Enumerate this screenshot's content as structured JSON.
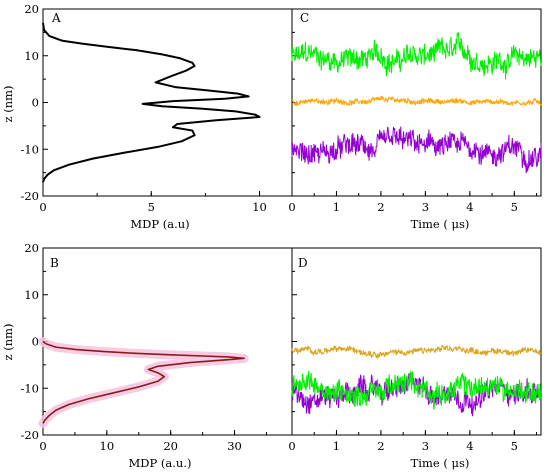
{
  "figure": {
    "panels": [
      "A",
      "B",
      "C",
      "D"
    ]
  },
  "chart_data": [
    {
      "id": "A",
      "type": "line",
      "xlabel": "MDP (a.u)",
      "ylabel": "z (nm)",
      "xlim": [
        0,
        11.5
      ],
      "ylim": [
        -20,
        20
      ],
      "xticks": [
        "0",
        "5",
        "10"
      ],
      "yticks": [
        "-20",
        "-10",
        "0",
        "10",
        "20"
      ],
      "series": [
        {
          "color": "#000000",
          "x": [
            0,
            0.05,
            0.3,
            0.9,
            1.8,
            3.0,
            4.3,
            5.5,
            6.3,
            6.9,
            7.0,
            6.6,
            5.9,
            5.2,
            6.1,
            7.6,
            9.0,
            9.5,
            8.4,
            6.0,
            4.6,
            5.5,
            7.3,
            8.9,
            9.8,
            10.0,
            8.0,
            6.2,
            6.0,
            6.9,
            7.0,
            6.4,
            5.3,
            3.8,
            2.3,
            1.2,
            0.5,
            0.2,
            0.05,
            0
          ],
          "y": [
            17,
            15.5,
            14.2,
            13.2,
            12.6,
            11.9,
            11.2,
            10.3,
            9.5,
            8.5,
            7.8,
            6.8,
            5.6,
            4.3,
            3.3,
            2.6,
            1.9,
            1.3,
            0.8,
            0.3,
            -0.3,
            -0.8,
            -1.3,
            -1.9,
            -2.6,
            -3.1,
            -3.8,
            -4.6,
            -5.3,
            -6.0,
            -7.0,
            -8.3,
            -9.5,
            -10.7,
            -12,
            -13.3,
            -14.5,
            -15.5,
            -16.4,
            -17
          ]
        }
      ]
    },
    {
      "id": "B",
      "type": "line",
      "xlabel": "MDP (a.u.)",
      "ylabel": "z (nm)",
      "xlim": [
        0,
        39
      ],
      "ylim": [
        -20,
        20
      ],
      "xticks": [
        "0",
        "10",
        "20",
        "30"
      ],
      "yticks": [
        "-20",
        "-10",
        "0",
        "10",
        "20"
      ],
      "series": [
        {
          "color": "#8b1a1a",
          "x": [
            0,
            0.5,
            2,
            5,
            9,
            14,
            19,
            25,
            29,
            31.5,
            29,
            23,
            18,
            16.5,
            18,
            19,
            18,
            15,
            11,
            7,
            4,
            2,
            1,
            0.3,
            0
          ],
          "y": [
            0,
            -0.5,
            -1.2,
            -1.7,
            -2.1,
            -2.5,
            -2.8,
            -3.1,
            -3.3,
            -3.6,
            -3.9,
            -4.5,
            -5.3,
            -6.0,
            -6.7,
            -7.5,
            -8.5,
            -9.7,
            -11,
            -12.3,
            -13.5,
            -14.7,
            -15.8,
            -16.8,
            -17.5
          ]
        }
      ]
    },
    {
      "id": "C",
      "type": "line",
      "xlabel": "Time ( μs)",
      "xlim": [
        0,
        5.6
      ],
      "ylim": [
        -20,
        20
      ],
      "xticks": [
        "0",
        "1",
        "2",
        "3",
        "4",
        "5"
      ],
      "series": [
        {
          "color": "#00ee00",
          "center": 9.5,
          "noise": 3.0
        },
        {
          "color": "#ffa500",
          "center": 0.2,
          "noise": 0.7
        },
        {
          "color": "#9400d3",
          "center": -10.3,
          "noise": 3.0
        }
      ]
    },
    {
      "id": "D",
      "type": "line",
      "xlabel": "Time ( μs)",
      "xlim": [
        0,
        5.6
      ],
      "ylim": [
        -20,
        20
      ],
      "xticks": [
        "0",
        "1",
        "2",
        "3",
        "4",
        "5"
      ],
      "series": [
        {
          "color": "#9400d3",
          "center": -10.5,
          "noise": 3.0
        },
        {
          "color": "#00ee00",
          "center": -10.0,
          "noise": 3.0
        },
        {
          "color": "#daa520",
          "center": -2.0,
          "noise": 0.8
        }
      ]
    }
  ]
}
